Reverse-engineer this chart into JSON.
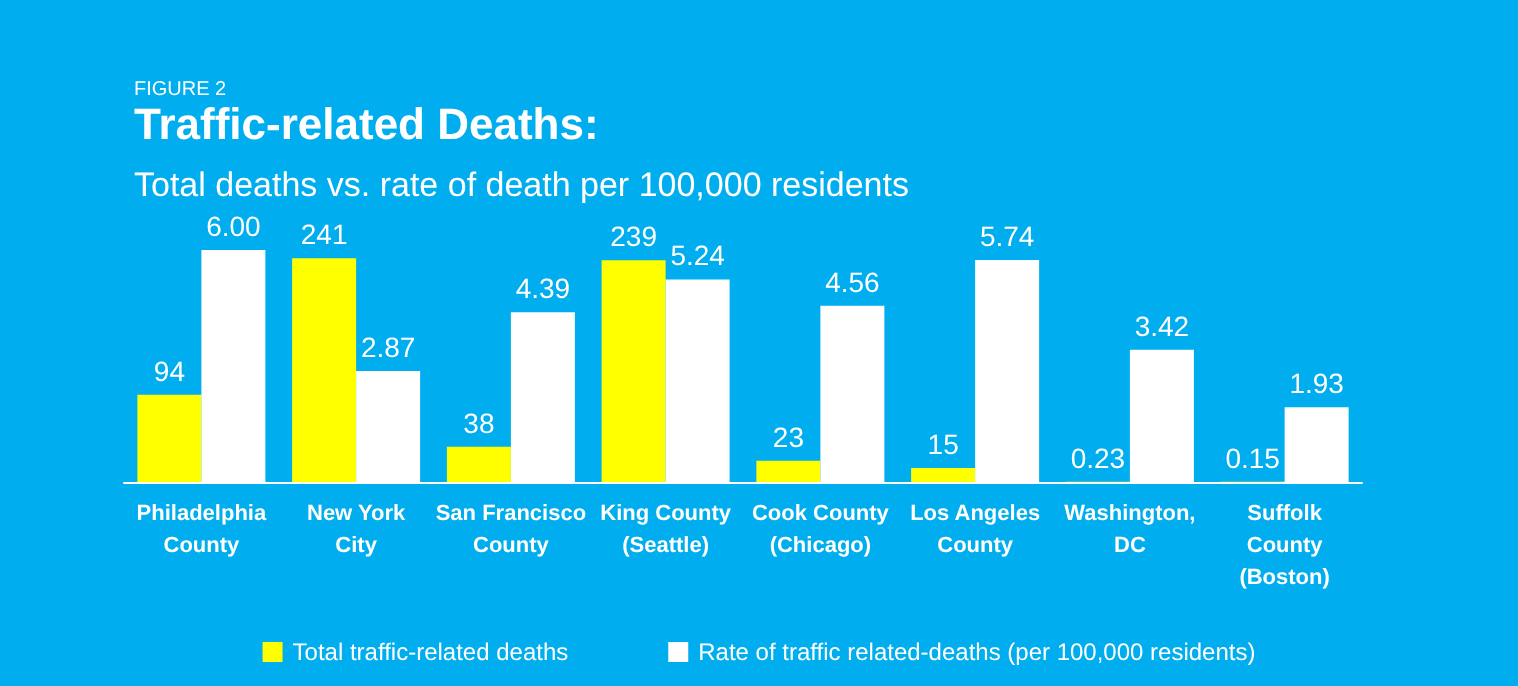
{
  "chart_data": {
    "type": "bar",
    "title": "Traffic-related Deaths:",
    "subtitle": "Total deaths vs. rate of death per 100,000 residents",
    "annotations": [
      "FIGURE 2"
    ],
    "categories": [
      "Philadelphia\nCounty",
      "New York\nCity",
      "San Francisco\nCounty",
      "King County\n(Seattle)",
      "Cook County\n(Chicago)",
      "Los Angeles\nCounty",
      "Washington,\nDC",
      "Suffolk\nCounty\n(Boston)"
    ],
    "data_labels": true,
    "series": [
      {
        "name": "Total traffic-related deaths",
        "color": "#ffff00",
        "axis": "y2",
        "values": [
          94,
          241,
          38,
          239,
          23,
          15,
          0.23,
          0.15
        ]
      },
      {
        "name": "Rate of traffic related-deaths (per 100,000 residents)",
        "color": "#ffffff",
        "values": [
          6.0,
          2.87,
          4.39,
          5.24,
          4.56,
          5.74,
          3.42,
          1.93
        ],
        "value_labels": [
          "6.00",
          "2.87",
          "4.39",
          "5.24",
          "4.56",
          "5.74",
          "3.42",
          "1.93"
        ]
      }
    ],
    "legend": "bottom"
  }
}
